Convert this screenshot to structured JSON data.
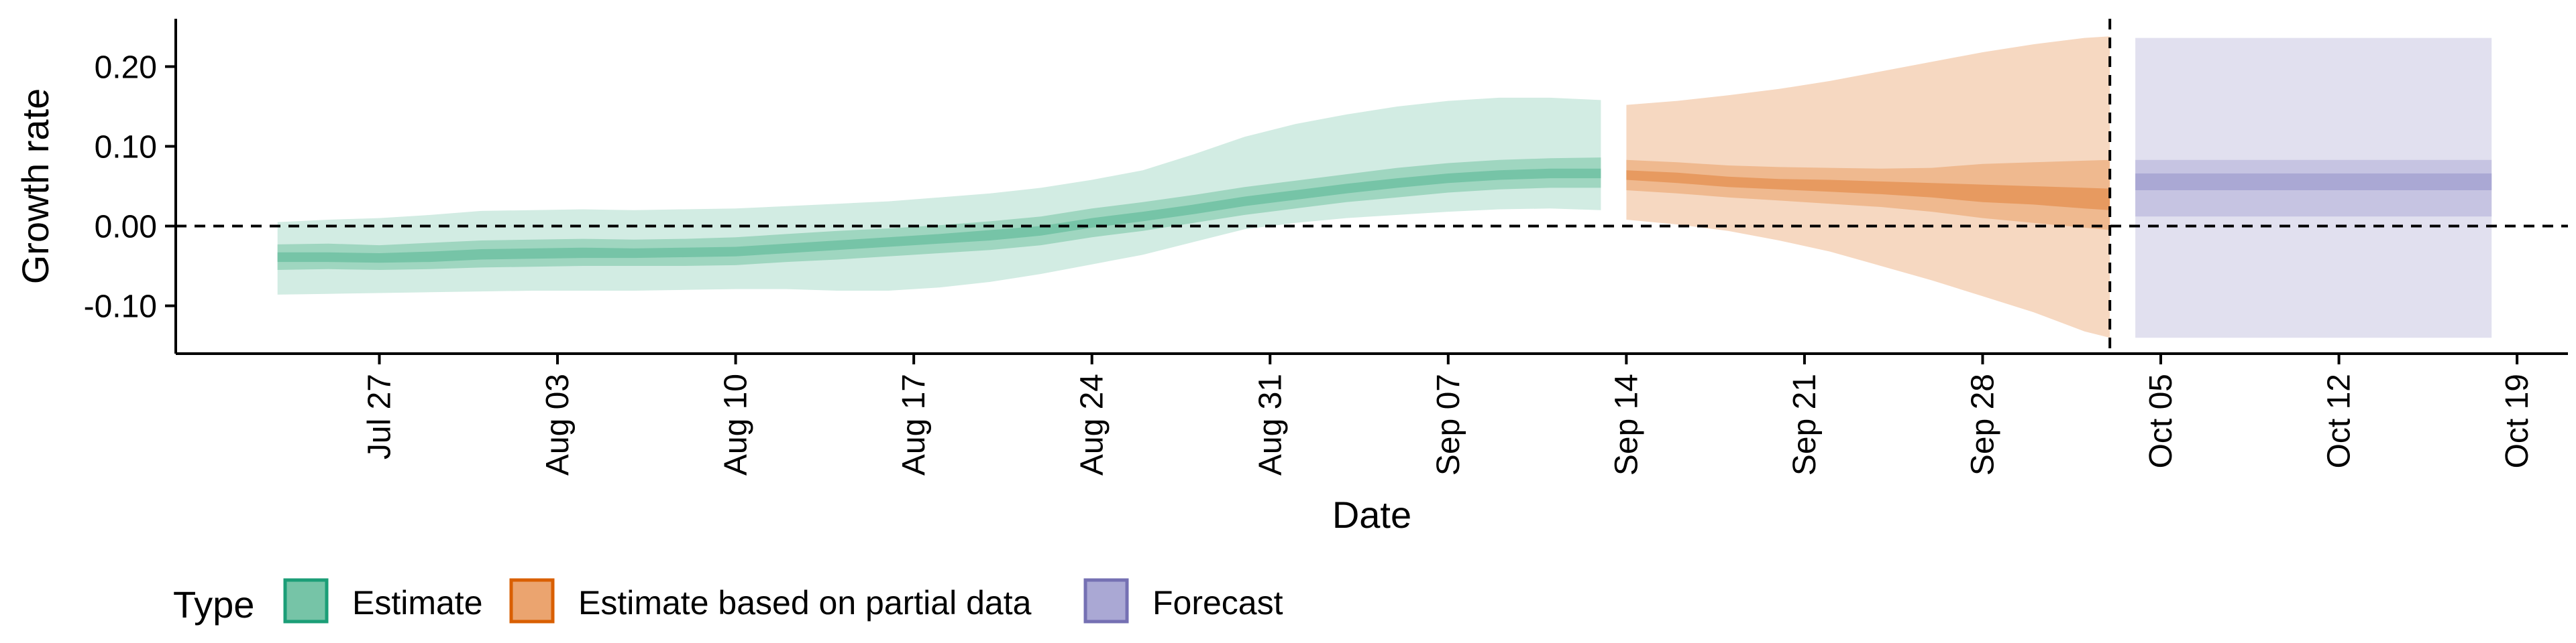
{
  "chart_data": {
    "type": "area",
    "xlabel": "Date",
    "ylabel": "Growth rate",
    "x_axis": {
      "type": "date",
      "range": [
        "2020-07-19",
        "2020-10-21"
      ],
      "ticks": [
        {
          "date": "2020-07-27",
          "label": "Jul 27"
        },
        {
          "date": "2020-08-03",
          "label": "Aug 03"
        },
        {
          "date": "2020-08-10",
          "label": "Aug 10"
        },
        {
          "date": "2020-08-17",
          "label": "Aug 17"
        },
        {
          "date": "2020-08-24",
          "label": "Aug 24"
        },
        {
          "date": "2020-08-31",
          "label": "Aug 31"
        },
        {
          "date": "2020-09-07",
          "label": "Sep 07"
        },
        {
          "date": "2020-09-14",
          "label": "Sep 14"
        },
        {
          "date": "2020-09-21",
          "label": "Sep 21"
        },
        {
          "date": "2020-09-28",
          "label": "Sep 28"
        },
        {
          "date": "2020-10-05",
          "label": "Oct 05"
        },
        {
          "date": "2020-10-12",
          "label": "Oct 12"
        },
        {
          "date": "2020-10-19",
          "label": "Oct 19"
        }
      ]
    },
    "y_axis": {
      "range": [
        -0.16,
        0.26
      ],
      "ticks": [
        {
          "value": -0.1,
          "label": "-0.10"
        },
        {
          "value": 0.0,
          "label": "0.00"
        },
        {
          "value": 0.1,
          "label": "0.10"
        },
        {
          "value": 0.2,
          "label": "0.20"
        }
      ]
    },
    "reference_lines": [
      {
        "axis": "y",
        "value": 0,
        "style": "dashed"
      },
      {
        "axis": "x",
        "value": "2020-10-03",
        "style": "dashed"
      }
    ],
    "legend": {
      "title": "Type",
      "position": "bottom-left",
      "entries": [
        {
          "label": "Estimate",
          "fill": "#76c4a7",
          "stroke": "#1b9e77"
        },
        {
          "label": "Estimate based on partial data",
          "fill": "#eba46f",
          "stroke": "#d95f02"
        },
        {
          "label": "Forecast",
          "fill": "#aaa8d4",
          "stroke": "#7570b3"
        }
      ]
    },
    "series": [
      {
        "type": "Estimate",
        "colors": {
          "outer": "#d2ece3",
          "mid": "#9fd6c0",
          "inner": "#76c4a7"
        },
        "points": [
          [
            "2020-07-23",
            -0.086,
            -0.055,
            -0.045,
            -0.033,
            -0.023,
            0.005
          ],
          [
            "2020-07-25",
            -0.085,
            -0.054,
            -0.045,
            -0.033,
            -0.022,
            0.008
          ],
          [
            "2020-07-27",
            -0.084,
            -0.055,
            -0.046,
            -0.034,
            -0.024,
            0.01
          ],
          [
            "2020-07-29",
            -0.083,
            -0.054,
            -0.045,
            -0.032,
            -0.021,
            0.014
          ],
          [
            "2020-07-31",
            -0.082,
            -0.052,
            -0.042,
            -0.029,
            -0.018,
            0.019
          ],
          [
            "2020-08-02",
            -0.081,
            -0.051,
            -0.041,
            -0.028,
            -0.017,
            0.02
          ],
          [
            "2020-08-04",
            -0.081,
            -0.05,
            -0.04,
            -0.027,
            -0.016,
            0.021
          ],
          [
            "2020-08-06",
            -0.081,
            -0.05,
            -0.04,
            -0.028,
            -0.017,
            0.02
          ],
          [
            "2020-08-08",
            -0.08,
            -0.05,
            -0.039,
            -0.027,
            -0.016,
            0.021
          ],
          [
            "2020-08-10",
            -0.079,
            -0.049,
            -0.038,
            -0.026,
            -0.014,
            0.022
          ],
          [
            "2020-08-12",
            -0.079,
            -0.045,
            -0.034,
            -0.022,
            -0.01,
            0.025
          ],
          [
            "2020-08-14",
            -0.081,
            -0.042,
            -0.03,
            -0.018,
            -0.006,
            0.028
          ],
          [
            "2020-08-16",
            -0.081,
            -0.038,
            -0.026,
            -0.014,
            -0.003,
            0.031
          ],
          [
            "2020-08-18",
            -0.077,
            -0.034,
            -0.022,
            -0.01,
            0.001,
            0.036
          ],
          [
            "2020-08-20",
            -0.07,
            -0.03,
            -0.018,
            -0.005,
            0.006,
            0.041
          ],
          [
            "2020-08-22",
            -0.06,
            -0.024,
            -0.012,
            0.0,
            0.012,
            0.048
          ],
          [
            "2020-08-24",
            -0.048,
            -0.014,
            -0.002,
            0.01,
            0.022,
            0.058
          ],
          [
            "2020-08-26",
            -0.036,
            -0.006,
            0.006,
            0.018,
            0.03,
            0.07
          ],
          [
            "2020-08-28",
            -0.02,
            0.004,
            0.015,
            0.027,
            0.039,
            0.09
          ],
          [
            "2020-08-30",
            -0.004,
            0.014,
            0.025,
            0.037,
            0.049,
            0.112
          ],
          [
            "2020-09-01",
            0.004,
            0.022,
            0.033,
            0.045,
            0.057,
            0.128
          ],
          [
            "2020-09-03",
            0.01,
            0.03,
            0.041,
            0.053,
            0.065,
            0.14
          ],
          [
            "2020-09-05",
            0.014,
            0.036,
            0.048,
            0.06,
            0.073,
            0.15
          ],
          [
            "2020-09-07",
            0.018,
            0.042,
            0.054,
            0.066,
            0.079,
            0.157
          ],
          [
            "2020-09-09",
            0.021,
            0.046,
            0.058,
            0.07,
            0.083,
            0.161
          ],
          [
            "2020-09-11",
            0.022,
            0.048,
            0.06,
            0.072,
            0.085,
            0.161
          ],
          [
            "2020-09-13",
            0.02,
            0.048,
            0.06,
            0.072,
            0.086,
            0.158
          ]
        ]
      },
      {
        "type": "Estimate based on partial data",
        "colors": {
          "outer": "#f6d8c1",
          "mid": "#efb98f",
          "inner": "#e79a60"
        },
        "points": [
          [
            "2020-09-14",
            0.008,
            0.045,
            0.058,
            0.07,
            0.083,
            0.152
          ],
          [
            "2020-09-16",
            0.002,
            0.041,
            0.054,
            0.067,
            0.08,
            0.157
          ],
          [
            "2020-09-18",
            -0.006,
            0.036,
            0.049,
            0.062,
            0.076,
            0.164
          ],
          [
            "2020-09-20",
            -0.018,
            0.032,
            0.046,
            0.059,
            0.074,
            0.172
          ],
          [
            "2020-09-22",
            -0.032,
            0.028,
            0.043,
            0.058,
            0.073,
            0.182
          ],
          [
            "2020-09-24",
            -0.05,
            0.024,
            0.04,
            0.056,
            0.072,
            0.194
          ],
          [
            "2020-09-26",
            -0.068,
            0.018,
            0.036,
            0.054,
            0.073,
            0.206
          ],
          [
            "2020-09-28",
            -0.088,
            0.01,
            0.03,
            0.052,
            0.078,
            0.218
          ],
          [
            "2020-09-30",
            -0.108,
            0.004,
            0.027,
            0.05,
            0.08,
            0.228
          ],
          [
            "2020-10-02",
            -0.132,
            -0.002,
            0.022,
            0.048,
            0.082,
            0.236
          ],
          [
            "2020-10-03",
            -0.14,
            -0.005,
            0.02,
            0.047,
            0.083,
            0.238
          ]
        ]
      },
      {
        "type": "Forecast",
        "colors": {
          "outer": "#e1e0ef",
          "mid": "#c6c4e2",
          "inner": "#aaa8d4"
        },
        "points": [
          [
            "2020-10-04",
            -0.14,
            0.012,
            0.045,
            0.066,
            0.083,
            0.236
          ],
          [
            "2020-10-18",
            -0.14,
            0.012,
            0.045,
            0.066,
            0.083,
            0.236
          ]
        ]
      }
    ]
  }
}
